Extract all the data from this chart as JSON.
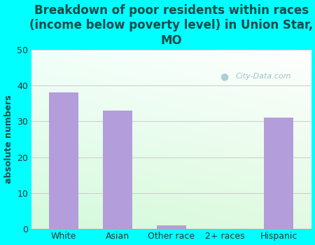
{
  "categories": [
    "White",
    "Asian",
    "Other race",
    "2+ races",
    "Hispanic"
  ],
  "values": [
    38,
    33,
    1,
    0,
    31
  ],
  "bar_color": "#b39ddb",
  "background_color": "#00ffff",
  "title": "Breakdown of poor residents within races\n(income below poverty level) in Union Star,\nMO",
  "title_color": "#1a4a4a",
  "ylabel": "absolute numbers",
  "ylabel_color": "#1a4a4a",
  "ylim": [
    0,
    50
  ],
  "yticks": [
    0,
    10,
    20,
    30,
    40,
    50
  ],
  "tick_color": "#333333",
  "grid_color": "#cccccc",
  "watermark": "City-Data.com",
  "title_fontsize": 12,
  "ylabel_fontsize": 9,
  "tick_fontsize": 9
}
